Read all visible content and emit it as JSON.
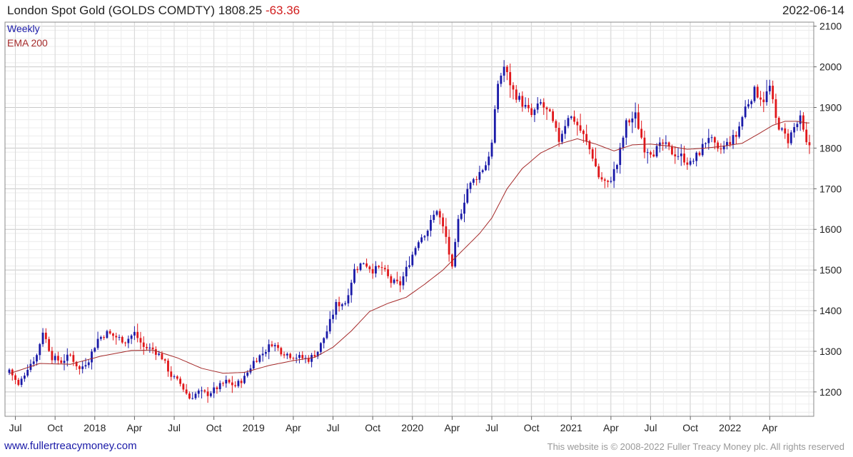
{
  "header": {
    "title": "London Spot Gold (GOLDS COMDTY)",
    "last": "1808.25",
    "change": "-63.36",
    "date": "2022-06-14"
  },
  "legend": {
    "weekly": "Weekly",
    "ema": "EMA 200"
  },
  "footer": {
    "site": "www.fullertreacymoney.com",
    "copyright": "This website is © 2008-2022 Fuller Treacy Money plc. All rights reserved"
  },
  "chart_data": {
    "type": "line",
    "ylim": [
      1140,
      2110
    ],
    "yticks": [
      1200,
      1300,
      1400,
      1500,
      1600,
      1700,
      1800,
      1900,
      2000,
      2100
    ],
    "xlim": [
      0,
      262
    ],
    "xticks": [
      {
        "label": "Jul",
        "i": 2
      },
      {
        "label": "Oct",
        "i": 15
      },
      {
        "label": "2018",
        "i": 28
      },
      {
        "label": "Apr",
        "i": 41
      },
      {
        "label": "Jul",
        "i": 54
      },
      {
        "label": "Oct",
        "i": 67
      },
      {
        "label": "2019",
        "i": 80
      },
      {
        "label": "Apr",
        "i": 93
      },
      {
        "label": "Jul",
        "i": 106
      },
      {
        "label": "Oct",
        "i": 119
      },
      {
        "label": "2020",
        "i": 132
      },
      {
        "label": "Apr",
        "i": 145
      },
      {
        "label": "Jul",
        "i": 158
      },
      {
        "label": "Oct",
        "i": 171
      },
      {
        "label": "2021",
        "i": 184
      },
      {
        "label": "Apr",
        "i": 197
      },
      {
        "label": "Jul",
        "i": 210
      },
      {
        "label": "Oct",
        "i": 223
      },
      {
        "label": "2022",
        "i": 236
      },
      {
        "label": "Apr",
        "i": 249
      }
    ],
    "anchors": [
      [
        0,
        1255
      ],
      [
        3,
        1215
      ],
      [
        6,
        1260
      ],
      [
        9,
        1290
      ],
      [
        11,
        1350
      ],
      [
        14,
        1285
      ],
      [
        17,
        1275
      ],
      [
        20,
        1290
      ],
      [
        23,
        1255
      ],
      [
        26,
        1280
      ],
      [
        29,
        1330
      ],
      [
        32,
        1345
      ],
      [
        35,
        1335
      ],
      [
        38,
        1325
      ],
      [
        41,
        1345
      ],
      [
        44,
        1310
      ],
      [
        47,
        1305
      ],
      [
        50,
        1285
      ],
      [
        53,
        1240
      ],
      [
        56,
        1220
      ],
      [
        59,
        1185
      ],
      [
        62,
        1200
      ],
      [
        65,
        1195
      ],
      [
        68,
        1210
      ],
      [
        71,
        1225
      ],
      [
        74,
        1215
      ],
      [
        77,
        1235
      ],
      [
        80,
        1275
      ],
      [
        83,
        1295
      ],
      [
        86,
        1320
      ],
      [
        89,
        1300
      ],
      [
        92,
        1290
      ],
      [
        95,
        1285
      ],
      [
        98,
        1280
      ],
      [
        101,
        1300
      ],
      [
        104,
        1350
      ],
      [
        107,
        1415
      ],
      [
        110,
        1420
      ],
      [
        113,
        1500
      ],
      [
        116,
        1520
      ],
      [
        119,
        1500
      ],
      [
        122,
        1505
      ],
      [
        125,
        1470
      ],
      [
        128,
        1465
      ],
      [
        131,
        1520
      ],
      [
        134,
        1575
      ],
      [
        137,
        1600
      ],
      [
        140,
        1650
      ],
      [
        143,
        1580
      ],
      [
        145,
        1500
      ],
      [
        147,
        1620
      ],
      [
        150,
        1700
      ],
      [
        153,
        1730
      ],
      [
        156,
        1760
      ],
      [
        158,
        1810
      ],
      [
        160,
        1960
      ],
      [
        162,
        2000
      ],
      [
        165,
        1940
      ],
      [
        168,
        1910
      ],
      [
        171,
        1880
      ],
      [
        174,
        1910
      ],
      [
        177,
        1880
      ],
      [
        180,
        1820
      ],
      [
        183,
        1880
      ],
      [
        185,
        1870
      ],
      [
        188,
        1830
      ],
      [
        191,
        1780
      ],
      [
        193,
        1730
      ],
      [
        196,
        1710
      ],
      [
        199,
        1760
      ],
      [
        202,
        1860
      ],
      [
        205,
        1880
      ],
      [
        208,
        1800
      ],
      [
        211,
        1790
      ],
      [
        214,
        1810
      ],
      [
        217,
        1790
      ],
      [
        220,
        1780
      ],
      [
        223,
        1760
      ],
      [
        226,
        1790
      ],
      [
        229,
        1830
      ],
      [
        232,
        1790
      ],
      [
        235,
        1810
      ],
      [
        238,
        1830
      ],
      [
        241,
        1900
      ],
      [
        244,
        1940
      ],
      [
        247,
        1920
      ],
      [
        249,
        1950
      ],
      [
        251,
        1870
      ],
      [
        253,
        1840
      ],
      [
        255,
        1820
      ],
      [
        257,
        1850
      ],
      [
        259,
        1870
      ],
      [
        261,
        1808
      ]
    ],
    "ema_anchors": [
      [
        0,
        1245
      ],
      [
        10,
        1270
      ],
      [
        20,
        1268
      ],
      [
        30,
        1288
      ],
      [
        40,
        1302
      ],
      [
        47,
        1303
      ],
      [
        55,
        1284
      ],
      [
        63,
        1258
      ],
      [
        70,
        1246
      ],
      [
        77,
        1248
      ],
      [
        85,
        1265
      ],
      [
        93,
        1277
      ],
      [
        100,
        1285
      ],
      [
        106,
        1310
      ],
      [
        112,
        1350
      ],
      [
        118,
        1398
      ],
      [
        124,
        1418
      ],
      [
        130,
        1433
      ],
      [
        136,
        1465
      ],
      [
        142,
        1500
      ],
      [
        148,
        1545
      ],
      [
        154,
        1590
      ],
      [
        158,
        1628
      ],
      [
        163,
        1700
      ],
      [
        168,
        1750
      ],
      [
        174,
        1788
      ],
      [
        180,
        1810
      ],
      [
        186,
        1823
      ],
      [
        192,
        1810
      ],
      [
        198,
        1793
      ],
      [
        204,
        1808
      ],
      [
        210,
        1810
      ],
      [
        216,
        1805
      ],
      [
        222,
        1797
      ],
      [
        228,
        1800
      ],
      [
        234,
        1805
      ],
      [
        240,
        1812
      ],
      [
        246,
        1838
      ],
      [
        250,
        1856
      ],
      [
        254,
        1866
      ],
      [
        258,
        1866
      ],
      [
        261,
        1862
      ]
    ]
  }
}
